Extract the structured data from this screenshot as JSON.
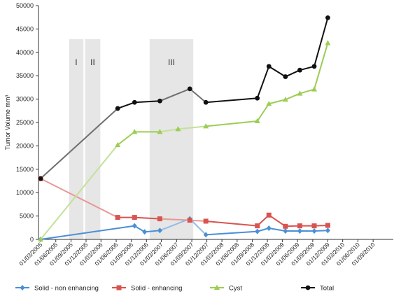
{
  "chart_data": {
    "type": "line",
    "ylabel": "Tumor Volume mm³",
    "xlabel": "",
    "ylim": [
      0,
      50000
    ],
    "yticks": [
      0,
      5000,
      10000,
      15000,
      20000,
      25000,
      30000,
      35000,
      40000,
      45000,
      50000
    ],
    "x_tick_labels": [
      "01/03/2005",
      "01/06/2005",
      "01/09/2005",
      "01/12/2005",
      "01/03/2006",
      "01/06/2006",
      "01/09/2006",
      "01/12/2006",
      "01/03/2007",
      "01/06/2007",
      "01/09/2007",
      "01/12/2007",
      "01/03/2008",
      "01/06/2008",
      "01/09/2008",
      "01/12/2008",
      "01/03/2009",
      "01/06/2009",
      "01/09/2009",
      "01/12/2009",
      "01/03/2010",
      "01/06/2010",
      "01/09/2010"
    ],
    "bands": [
      {
        "label": "I",
        "from": "2005-08-20",
        "to": "2005-11-15"
      },
      {
        "label": "II",
        "from": "2005-11-25",
        "to": "2006-02-25"
      },
      {
        "label": "III",
        "from": "2006-12-20",
        "to": "2007-09-10"
      }
    ],
    "series": [
      {
        "name": "Solid - non enhancing",
        "color": "#4a8fd6",
        "marker": "diamond",
        "points": [
          [
            "2005-03-01",
            0
          ],
          [
            "2006-09-20",
            2900
          ],
          [
            "2006-11-20",
            1600
          ],
          [
            "2007-02-20",
            1900
          ],
          [
            "2007-08-20",
            4400
          ],
          [
            "2007-11-25",
            1000
          ],
          [
            "2008-10-01",
            1700
          ],
          [
            "2008-12-10",
            2400
          ],
          [
            "2009-03-20",
            1800
          ],
          [
            "2009-06-15",
            1800
          ],
          [
            "2009-09-10",
            1800
          ],
          [
            "2009-12-01",
            1900
          ]
        ]
      },
      {
        "name": "Solid - enhancing",
        "color": "#d9534f",
        "marker": "square",
        "points": [
          [
            "2005-03-01",
            13000
          ],
          [
            "2006-06-10",
            4700
          ],
          [
            "2006-09-20",
            4700
          ],
          [
            "2007-02-20",
            4400
          ],
          [
            "2007-08-20",
            4100
          ],
          [
            "2007-11-25",
            3900
          ],
          [
            "2008-10-01",
            2900
          ],
          [
            "2008-12-10",
            5200
          ],
          [
            "2009-03-20",
            2800
          ],
          [
            "2009-06-15",
            2900
          ],
          [
            "2009-09-10",
            2900
          ],
          [
            "2009-12-01",
            3000
          ]
        ]
      },
      {
        "name": "Cyst",
        "color": "#9dcd55",
        "marker": "triangle",
        "points": [
          [
            "2005-03-01",
            0
          ],
          [
            "2006-06-10",
            20200
          ],
          [
            "2006-09-20",
            23000
          ],
          [
            "2007-02-20",
            23000
          ],
          [
            "2007-06-10",
            23600
          ],
          [
            "2007-11-25",
            24200
          ],
          [
            "2008-10-01",
            25300
          ],
          [
            "2008-12-10",
            29000
          ],
          [
            "2009-03-20",
            29900
          ],
          [
            "2009-06-15",
            31200
          ],
          [
            "2009-09-10",
            32100
          ],
          [
            "2009-12-01",
            42000
          ]
        ]
      },
      {
        "name": "Total",
        "color": "#111111",
        "marker": "circle",
        "points": [
          [
            "2005-03-01",
            13000
          ],
          [
            "2006-06-10",
            28000
          ],
          [
            "2006-09-20",
            29300
          ],
          [
            "2007-02-20",
            29600
          ],
          [
            "2007-08-20",
            32200
          ],
          [
            "2007-11-25",
            29300
          ],
          [
            "2008-10-01",
            30200
          ],
          [
            "2008-12-10",
            37000
          ],
          [
            "2009-03-20",
            34800
          ],
          [
            "2009-06-15",
            36200
          ],
          [
            "2009-09-10",
            37000
          ],
          [
            "2009-12-01",
            47400
          ]
        ]
      }
    ],
    "faded_segments": [
      {
        "from": "2005-03-01",
        "to": "2006-06-10"
      },
      {
        "from": "2007-02-20",
        "to": "2007-11-25"
      }
    ],
    "legend": "bottom",
    "grid": false
  }
}
